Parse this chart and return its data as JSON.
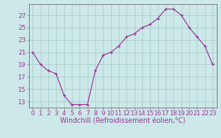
{
  "x": [
    0,
    1,
    2,
    3,
    4,
    5,
    6,
    7,
    8,
    9,
    10,
    11,
    12,
    13,
    14,
    15,
    16,
    17,
    18,
    19,
    20,
    21,
    22,
    23
  ],
  "y": [
    21,
    19,
    18,
    17.5,
    14,
    12.5,
    12.5,
    12.5,
    18,
    20.5,
    21,
    22,
    23.5,
    24,
    25,
    25.5,
    26.5,
    28,
    28,
    27,
    25,
    23.5,
    22,
    19
  ],
  "line_color": "#993399",
  "marker": "+",
  "background_color": "#cce8e8",
  "grid_color": "#aacccc",
  "xlabel": "Windchill (Refroidissement éolien,°C)",
  "xlabel_color": "#993399",
  "tick_color": "#993399",
  "xlim": [
    -0.5,
    23.5
  ],
  "ylim": [
    12.0,
    28.8
  ],
  "yticks": [
    13,
    15,
    17,
    19,
    21,
    23,
    25,
    27
  ],
  "xticks": [
    0,
    1,
    2,
    3,
    4,
    5,
    6,
    7,
    8,
    9,
    10,
    11,
    12,
    13,
    14,
    15,
    16,
    17,
    18,
    19,
    20,
    21,
    22,
    23
  ],
  "xtick_labels": [
    "0",
    "1",
    "2",
    "3",
    "4",
    "5",
    "6",
    "7",
    "8",
    "9",
    "10",
    "11",
    "12",
    "13",
    "14",
    "15",
    "16",
    "17",
    "18",
    "19",
    "20",
    "21",
    "22",
    "23"
  ],
  "font_size": 6.5,
  "xlabel_font_size": 7.0,
  "line_width": 0.9,
  "marker_size": 3.5,
  "marker_edge_width": 0.9
}
